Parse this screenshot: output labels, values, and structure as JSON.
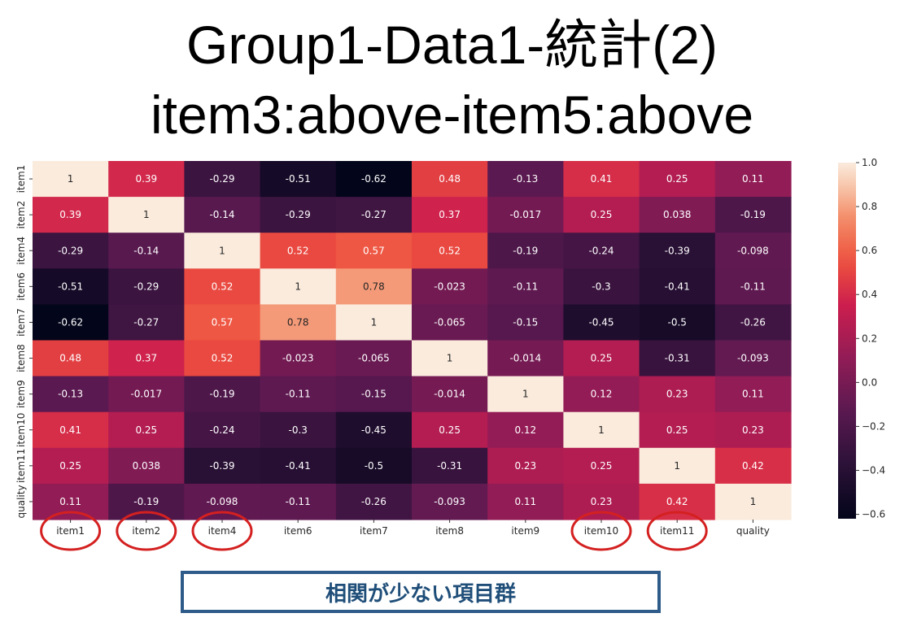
{
  "title": {
    "line1": "Group1-Data1-統計(2)",
    "line2": "item3:above-item5:above"
  },
  "chart_data": {
    "type": "heatmap",
    "x_labels": [
      "item1",
      "item2",
      "item4",
      "item6",
      "item7",
      "item8",
      "item9",
      "item10",
      "item11",
      "quality"
    ],
    "y_labels": [
      "item1",
      "item2",
      "item4",
      "item6",
      "item7",
      "item8",
      "item9",
      "item10",
      "item11",
      "quality"
    ],
    "values": [
      [
        1,
        0.39,
        -0.29,
        -0.51,
        -0.62,
        0.48,
        -0.13,
        0.41,
        0.25,
        0.11
      ],
      [
        0.39,
        1,
        -0.14,
        -0.29,
        -0.27,
        0.37,
        -0.017,
        0.25,
        0.038,
        -0.19
      ],
      [
        -0.29,
        -0.14,
        1,
        0.52,
        0.57,
        0.52,
        -0.19,
        -0.24,
        -0.39,
        -0.098
      ],
      [
        -0.51,
        -0.29,
        0.52,
        1,
        0.78,
        -0.023,
        -0.11,
        -0.3,
        -0.41,
        -0.11
      ],
      [
        -0.62,
        -0.27,
        0.57,
        0.78,
        1,
        -0.065,
        -0.15,
        -0.45,
        -0.5,
        -0.26
      ],
      [
        0.48,
        0.37,
        0.52,
        -0.023,
        -0.065,
        1,
        -0.014,
        0.25,
        -0.31,
        -0.093
      ],
      [
        -0.13,
        -0.017,
        -0.19,
        -0.11,
        -0.15,
        -0.014,
        1,
        0.12,
        0.23,
        0.11
      ],
      [
        0.41,
        0.25,
        -0.24,
        -0.3,
        -0.45,
        0.25,
        0.12,
        1,
        0.25,
        0.23
      ],
      [
        0.25,
        0.038,
        -0.39,
        -0.41,
        -0.5,
        -0.31,
        0.23,
        0.25,
        1,
        0.42
      ],
      [
        0.11,
        -0.19,
        -0.098,
        -0.11,
        -0.26,
        -0.093,
        0.11,
        0.23,
        0.42,
        1
      ]
    ],
    "colorbar": {
      "range": [
        -0.62,
        1.0
      ],
      "ticks": [
        1.0,
        0.8,
        0.6,
        0.4,
        0.2,
        0.0,
        -0.2,
        -0.4,
        -0.6
      ],
      "tick_labels": [
        "1.0",
        "0.8",
        "0.6",
        "0.4",
        "0.2",
        "0.0",
        "−0.2",
        "−0.4",
        "−0.6"
      ]
    },
    "colormap": "rocket",
    "highlighted_x_labels": [
      "item1",
      "item2",
      "item4",
      "item10",
      "item11"
    ],
    "highlight_color": "#d42020"
  },
  "annotation": {
    "text": "相関が少ない項目群",
    "border_color": "#2e5b8a",
    "text_color": "#1f4e79"
  }
}
